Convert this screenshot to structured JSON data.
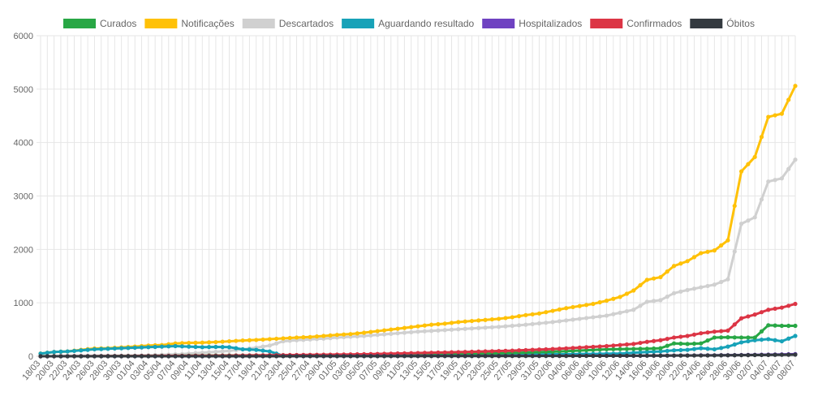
{
  "chart_data": {
    "type": "line",
    "ylim": [
      0,
      6000
    ],
    "yticks": [
      0,
      1000,
      2000,
      3000,
      4000,
      5000,
      6000
    ],
    "grid": true,
    "legend_position": "top",
    "x": [
      "18/03",
      "19/03",
      "20/03",
      "21/03",
      "22/03",
      "23/03",
      "24/03",
      "25/03",
      "26/03",
      "27/03",
      "28/03",
      "29/03",
      "30/03",
      "31/03",
      "01/04",
      "02/04",
      "03/04",
      "04/04",
      "05/04",
      "06/04",
      "07/04",
      "08/04",
      "09/04",
      "10/04",
      "11/04",
      "12/04",
      "13/04",
      "14/04",
      "15/04",
      "16/04",
      "17/04",
      "18/04",
      "19/04",
      "20/04",
      "21/04",
      "22/04",
      "23/04",
      "24/04",
      "25/04",
      "26/04",
      "27/04",
      "28/04",
      "29/04",
      "30/04",
      "01/05",
      "02/05",
      "03/05",
      "04/05",
      "05/05",
      "06/05",
      "07/05",
      "08/05",
      "09/05",
      "10/05",
      "11/05",
      "12/05",
      "13/05",
      "14/05",
      "15/05",
      "16/05",
      "17/05",
      "18/05",
      "19/05",
      "20/05",
      "21/05",
      "22/05",
      "23/05",
      "24/05",
      "25/05",
      "26/05",
      "27/05",
      "28/05",
      "29/05",
      "30/05",
      "31/05",
      "01/06",
      "02/06",
      "03/06",
      "04/06",
      "05/06",
      "06/06",
      "07/06",
      "08/06",
      "09/06",
      "10/06",
      "11/06",
      "12/06",
      "13/06",
      "14/06",
      "15/06",
      "16/06",
      "17/06",
      "18/06",
      "19/06",
      "20/06",
      "21/06",
      "22/06",
      "23/06",
      "24/06",
      "25/06",
      "26/06",
      "27/06",
      "28/06",
      "29/06",
      "30/06",
      "01/07",
      "02/07",
      "03/07",
      "04/07",
      "05/07",
      "06/07",
      "07/07",
      "08/07"
    ],
    "x_tick_labels": [
      "18/03",
      "20/03",
      "22/03",
      "24/03",
      "26/03",
      "28/03",
      "30/03",
      "01/04",
      "03/04",
      "05/04",
      "07/04",
      "09/04",
      "11/04",
      "13/04",
      "15/04",
      "17/04",
      "19/04",
      "21/04",
      "23/04",
      "25/04",
      "27/04",
      "29/04",
      "01/05",
      "03/05",
      "05/05",
      "07/05",
      "09/05",
      "11/05",
      "13/05",
      "15/05",
      "17/05",
      "19/05",
      "21/05",
      "23/05",
      "25/05",
      "27/05",
      "29/05",
      "31/05",
      "02/06",
      "04/06",
      "06/06",
      "08/06",
      "10/06",
      "12/06",
      "14/06",
      "16/06",
      "18/06",
      "20/06",
      "22/06",
      "24/06",
      "26/06",
      "28/06",
      "30/06",
      "02/07",
      "04/07",
      "06/07",
      "08/07"
    ],
    "series": [
      {
        "name": "Curados",
        "color": "#28a745",
        "points": [
          [
            "18/03",
            0
          ],
          [
            "25/03",
            0
          ],
          [
            "01/04",
            5
          ],
          [
            "08/04",
            10
          ],
          [
            "15/04",
            15
          ],
          [
            "22/04",
            18
          ],
          [
            "29/04",
            25
          ],
          [
            "06/05",
            30
          ],
          [
            "13/05",
            35
          ],
          [
            "20/05",
            40
          ],
          [
            "27/05",
            60
          ],
          [
            "03/06",
            90
          ],
          [
            "10/06",
            130
          ],
          [
            "16/06",
            140
          ],
          [
            "18/06",
            150
          ],
          [
            "20/06",
            240
          ],
          [
            "22/06",
            230
          ],
          [
            "24/06",
            240
          ],
          [
            "26/06",
            350
          ],
          [
            "28/06",
            355
          ],
          [
            "30/06",
            350
          ],
          [
            "02/07",
            350
          ],
          [
            "04/07",
            580
          ],
          [
            "06/07",
            570
          ],
          [
            "08/07",
            570
          ]
        ]
      },
      {
        "name": "Notificações",
        "color": "#ffc107",
        "points": [
          [
            "18/03",
            50
          ],
          [
            "20/03",
            80
          ],
          [
            "22/03",
            90
          ],
          [
            "24/03",
            120
          ],
          [
            "26/03",
            145
          ],
          [
            "28/03",
            150
          ],
          [
            "30/03",
            165
          ],
          [
            "01/04",
            180
          ],
          [
            "03/04",
            200
          ],
          [
            "05/04",
            210
          ],
          [
            "07/04",
            240
          ],
          [
            "09/04",
            250
          ],
          [
            "11/04",
            255
          ],
          [
            "13/04",
            265
          ],
          [
            "15/04",
            280
          ],
          [
            "17/04",
            295
          ],
          [
            "19/04",
            305
          ],
          [
            "21/04",
            320
          ],
          [
            "23/04",
            335
          ],
          [
            "25/04",
            350
          ],
          [
            "27/04",
            360
          ],
          [
            "29/04",
            380
          ],
          [
            "01/05",
            400
          ],
          [
            "03/05",
            415
          ],
          [
            "05/05",
            440
          ],
          [
            "07/05",
            470
          ],
          [
            "09/05",
            500
          ],
          [
            "11/05",
            530
          ],
          [
            "13/05",
            560
          ],
          [
            "15/05",
            590
          ],
          [
            "17/05",
            610
          ],
          [
            "19/05",
            640
          ],
          [
            "21/05",
            660
          ],
          [
            "23/05",
            680
          ],
          [
            "25/05",
            700
          ],
          [
            "27/05",
            730
          ],
          [
            "29/05",
            770
          ],
          [
            "31/05",
            800
          ],
          [
            "02/06",
            850
          ],
          [
            "04/06",
            900
          ],
          [
            "06/06",
            940
          ],
          [
            "08/06",
            980
          ],
          [
            "10/06",
            1040
          ],
          [
            "12/06",
            1110
          ],
          [
            "14/06",
            1230
          ],
          [
            "16/06",
            1430
          ],
          [
            "18/06",
            1480
          ],
          [
            "20/06",
            1690
          ],
          [
            "22/06",
            1780
          ],
          [
            "24/06",
            1930
          ],
          [
            "26/06",
            1980
          ],
          [
            "28/06",
            2170
          ],
          [
            "30/06",
            3460
          ],
          [
            "02/07",
            3730
          ],
          [
            "04/07",
            4480
          ],
          [
            "06/07",
            4540
          ],
          [
            "08/07",
            5060
          ]
        ]
      },
      {
        "name": "Descartados",
        "color": "#d0d0d0",
        "points": [
          [
            "18/03",
            0
          ],
          [
            "01/04",
            10
          ],
          [
            "08/04",
            40
          ],
          [
            "15/04",
            100
          ],
          [
            "19/04",
            160
          ],
          [
            "21/04",
            200
          ],
          [
            "23/04",
            280
          ],
          [
            "25/04",
            300
          ],
          [
            "29/04",
            330
          ],
          [
            "01/05",
            350
          ],
          [
            "05/05",
            380
          ],
          [
            "09/05",
            420
          ],
          [
            "13/05",
            460
          ],
          [
            "17/05",
            490
          ],
          [
            "21/05",
            520
          ],
          [
            "25/05",
            550
          ],
          [
            "29/05",
            590
          ],
          [
            "02/06",
            640
          ],
          [
            "06/06",
            700
          ],
          [
            "10/06",
            760
          ],
          [
            "14/06",
            870
          ],
          [
            "16/06",
            1020
          ],
          [
            "18/06",
            1050
          ],
          [
            "20/06",
            1180
          ],
          [
            "22/06",
            1240
          ],
          [
            "24/06",
            1290
          ],
          [
            "26/06",
            1340
          ],
          [
            "28/06",
            1440
          ],
          [
            "30/06",
            2480
          ],
          [
            "02/07",
            2600
          ],
          [
            "04/07",
            3270
          ],
          [
            "06/07",
            3330
          ],
          [
            "08/07",
            3680
          ]
        ]
      },
      {
        "name": "Aguardando resultado",
        "color": "#17a2b8",
        "points": [
          [
            "18/03",
            50
          ],
          [
            "20/03",
            80
          ],
          [
            "22/03",
            90
          ],
          [
            "24/03",
            110
          ],
          [
            "26/03",
            130
          ],
          [
            "28/03",
            140
          ],
          [
            "30/03",
            150
          ],
          [
            "01/04",
            160
          ],
          [
            "03/04",
            170
          ],
          [
            "05/04",
            180
          ],
          [
            "07/04",
            190
          ],
          [
            "09/04",
            180
          ],
          [
            "11/04",
            170
          ],
          [
            "13/04",
            175
          ],
          [
            "15/04",
            170
          ],
          [
            "17/04",
            130
          ],
          [
            "19/04",
            120
          ],
          [
            "21/04",
            90
          ],
          [
            "23/04",
            10
          ],
          [
            "25/04",
            10
          ],
          [
            "01/05",
            15
          ],
          [
            "08/05",
            20
          ],
          [
            "15/05",
            25
          ],
          [
            "22/05",
            30
          ],
          [
            "29/05",
            35
          ],
          [
            "05/06",
            40
          ],
          [
            "12/06",
            50
          ],
          [
            "16/06",
            80
          ],
          [
            "18/06",
            90
          ],
          [
            "20/06",
            110
          ],
          [
            "22/06",
            120
          ],
          [
            "24/06",
            150
          ],
          [
            "26/06",
            130
          ],
          [
            "28/06",
            180
          ],
          [
            "30/06",
            260
          ],
          [
            "02/07",
            300
          ],
          [
            "04/07",
            320
          ],
          [
            "06/07",
            280
          ],
          [
            "08/07",
            380
          ]
        ]
      },
      {
        "name": "Hospitalizados",
        "color": "#6f42c1",
        "points": [
          [
            "18/03",
            0
          ],
          [
            "15/04",
            0
          ],
          [
            "15/05",
            5
          ],
          [
            "01/06",
            8
          ],
          [
            "15/06",
            10
          ],
          [
            "22/06",
            15
          ],
          [
            "28/06",
            20
          ],
          [
            "04/07",
            30
          ],
          [
            "08/07",
            40
          ]
        ]
      },
      {
        "name": "Confirmados",
        "color": "#dc3545",
        "points": [
          [
            "18/03",
            0
          ],
          [
            "25/03",
            2
          ],
          [
            "01/04",
            5
          ],
          [
            "08/04",
            8
          ],
          [
            "15/04",
            12
          ],
          [
            "22/04",
            20
          ],
          [
            "29/04",
            28
          ],
          [
            "06/05",
            40
          ],
          [
            "13/05",
            60
          ],
          [
            "20/05",
            80
          ],
          [
            "27/05",
            105
          ],
          [
            "03/06",
            140
          ],
          [
            "10/06",
            190
          ],
          [
            "14/06",
            230
          ],
          [
            "16/06",
            270
          ],
          [
            "18/06",
            300
          ],
          [
            "20/06",
            350
          ],
          [
            "22/06",
            380
          ],
          [
            "24/06",
            430
          ],
          [
            "26/06",
            460
          ],
          [
            "28/06",
            480
          ],
          [
            "30/06",
            710
          ],
          [
            "02/07",
            780
          ],
          [
            "04/07",
            870
          ],
          [
            "06/07",
            910
          ],
          [
            "08/07",
            980
          ]
        ]
      },
      {
        "name": "Óbitos",
        "color": "#343a40",
        "points": [
          [
            "18/03",
            0
          ],
          [
            "15/04",
            0
          ],
          [
            "15/05",
            3
          ],
          [
            "01/06",
            5
          ],
          [
            "15/06",
            10
          ],
          [
            "25/06",
            15
          ],
          [
            "30/06",
            20
          ],
          [
            "04/07",
            25
          ],
          [
            "08/07",
            30
          ]
        ]
      }
    ]
  }
}
